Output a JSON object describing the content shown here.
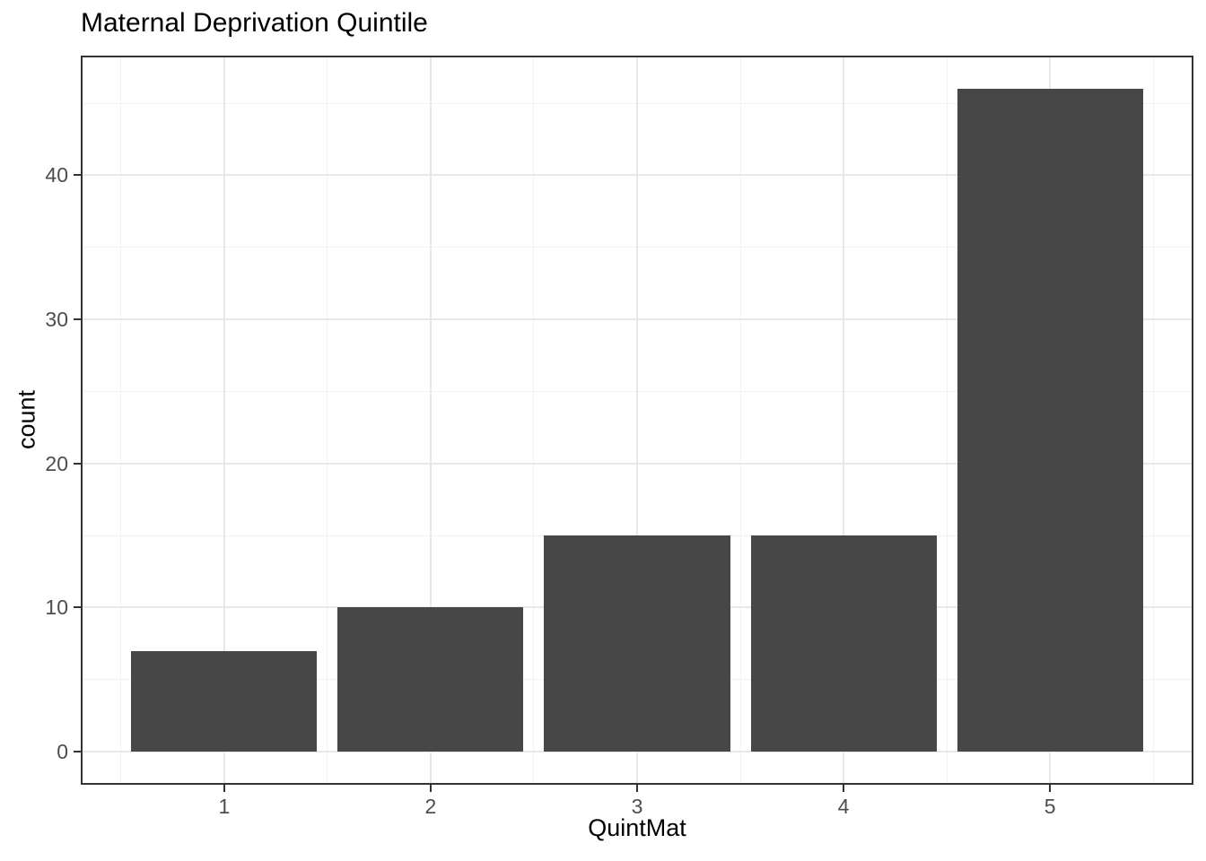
{
  "chart_data": {
    "type": "bar",
    "title": "Maternal Deprivation Quintile",
    "xlabel": "QuintMat",
    "ylabel": "count",
    "categories": [
      1,
      2,
      3,
      4,
      5
    ],
    "values": [
      7,
      10,
      15,
      15,
      46
    ],
    "bar_width": 0.9,
    "x_range": [
      0.305,
      5.695
    ],
    "y_range": [
      -2.3,
      48.3
    ],
    "x_ticks": [
      {
        "value": 1,
        "label": "1"
      },
      {
        "value": 2,
        "label": "2"
      },
      {
        "value": 3,
        "label": "3"
      },
      {
        "value": 4,
        "label": "4"
      },
      {
        "value": 5,
        "label": "5"
      }
    ],
    "y_ticks": [
      {
        "value": 0,
        "label": "0"
      },
      {
        "value": 10,
        "label": "10"
      },
      {
        "value": 20,
        "label": "20"
      },
      {
        "value": 30,
        "label": "30"
      },
      {
        "value": 40,
        "label": "40"
      }
    ],
    "x_minor_gridlines": [
      0.5,
      1.5,
      2.5,
      3.5,
      4.5,
      5.5
    ],
    "y_minor_gridlines": [
      5,
      15,
      25,
      35,
      45
    ],
    "grid": true,
    "legend_position": "none",
    "colors": {
      "bar": "#474747",
      "panel_border": "#333333",
      "grid_major": "#E8E8E8",
      "grid_minor": "#F2F2F2",
      "tick_mark": "#333333",
      "tick_label": "#4D4D4D",
      "title": "#000000",
      "background": "#FFFFFF"
    }
  }
}
